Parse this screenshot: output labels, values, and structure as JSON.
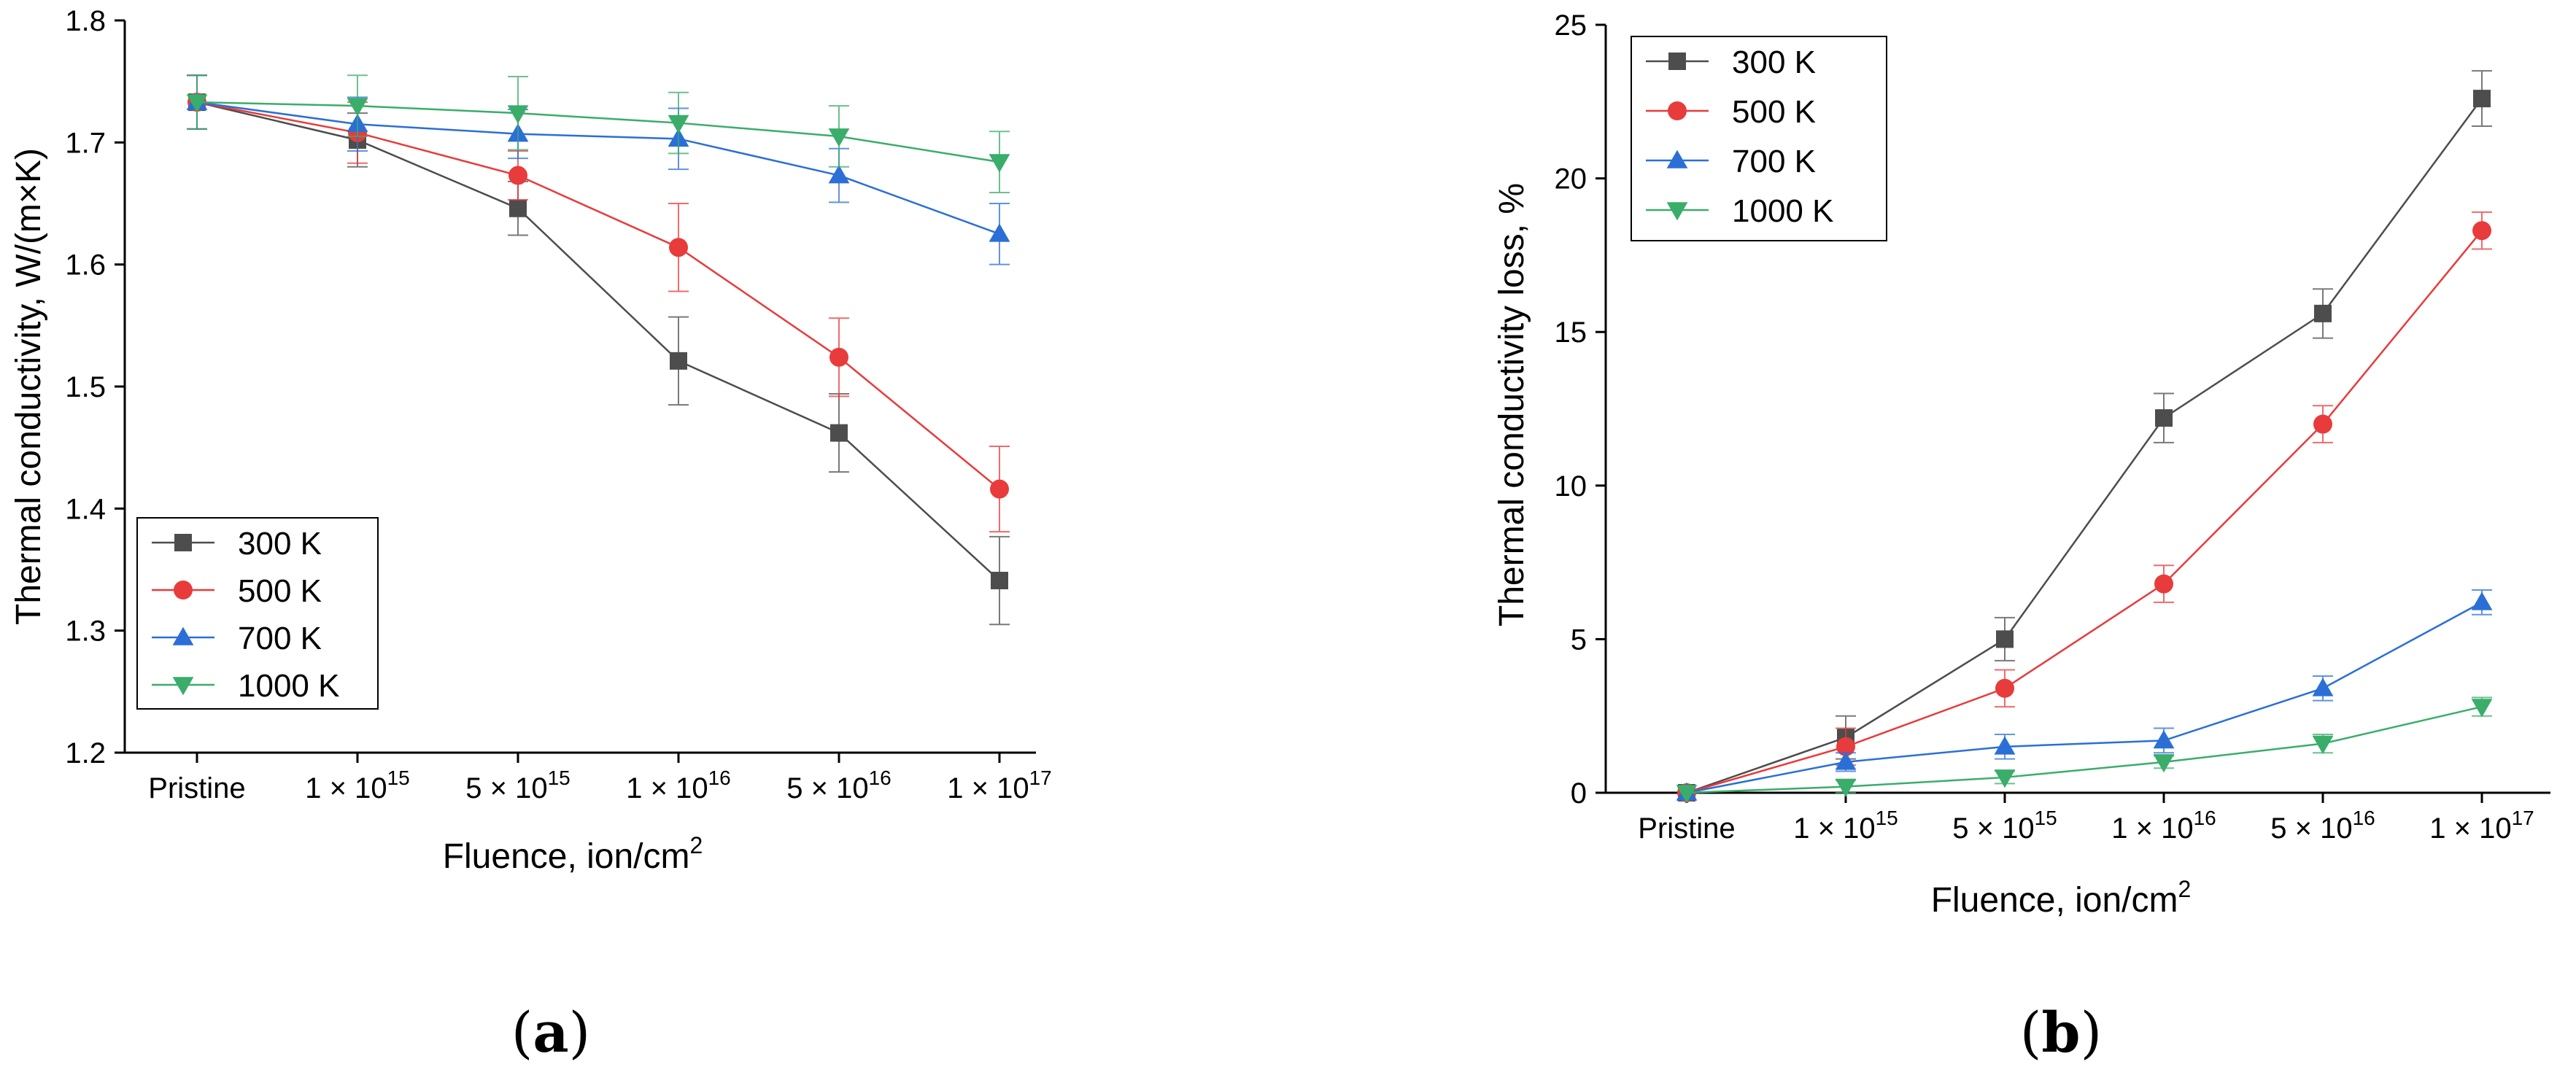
{
  "colors": {
    "300K": "#4d4d4d",
    "500K": "#e83b3b",
    "700K": "#2b6fd6",
    "1000K": "#3aad6a",
    "axis": "#000000"
  },
  "charts": {
    "a": {
      "caption_letter": "a",
      "ylabel": "Thermal conductivity, W/(m×K)",
      "xlabel_base": "Fluence, ion/cm",
      "xlabel_exp": "2",
      "yticks": [
        "1.2",
        "1.3",
        "1.4",
        "1.5",
        "1.6",
        "1.7",
        "1.8"
      ],
      "legend_position": "bottom-left"
    },
    "b": {
      "caption_letter": "b",
      "ylabel": "Thermal conductivity loss, %",
      "xlabel_base": "Fluence, ion/cm",
      "xlabel_exp": "2",
      "yticks": [
        "0",
        "5",
        "10",
        "15",
        "20",
        "25"
      ],
      "legend_position": "top-left"
    }
  },
  "xtick_labels": [
    {
      "base": "Pristine",
      "exp": ""
    },
    {
      "base": "1 × 10",
      "exp": "15"
    },
    {
      "base": "5 × 10",
      "exp": "15"
    },
    {
      "base": "1 × 10",
      "exp": "16"
    },
    {
      "base": "5 × 10",
      "exp": "16"
    },
    {
      "base": "1 × 10",
      "exp": "17"
    }
  ],
  "legend_labels": [
    "300 K",
    "500 K",
    "700 K",
    "1000 K"
  ],
  "chart_data": [
    {
      "type": "line",
      "panel": "a",
      "categories": [
        "Pristine",
        "1 × 10^15",
        "5 × 10^15",
        "1 × 10^16",
        "5 × 10^16",
        "1 × 10^17"
      ],
      "xlabel": "Fluence, ion/cm^2",
      "ylabel": "Thermal conductivity, W/(m×K)",
      "ylim": [
        1.2,
        1.8
      ],
      "grid": false,
      "legend": "bottom-left",
      "series": [
        {
          "name": "300 K",
          "marker": "square",
          "values": [
            1.733,
            1.702,
            1.646,
            1.521,
            1.462,
            1.341
          ],
          "errors": [
            0.022,
            0.022,
            0.022,
            0.036,
            0.032,
            0.036
          ]
        },
        {
          "name": "500 K",
          "marker": "circle",
          "values": [
            1.733,
            1.708,
            1.673,
            1.614,
            1.524,
            1.416
          ],
          "errors": [
            0.022,
            0.025,
            0.02,
            0.036,
            0.032,
            0.035
          ]
        },
        {
          "name": "700 K",
          "marker": "triangle-up",
          "values": [
            1.733,
            1.715,
            1.707,
            1.703,
            1.673,
            1.625
          ],
          "errors": [
            0.022,
            0.022,
            0.02,
            0.025,
            0.022,
            0.025
          ]
        },
        {
          "name": "1000 K",
          "marker": "triangle-down",
          "values": [
            1.733,
            1.73,
            1.724,
            1.716,
            1.705,
            1.684
          ],
          "errors": [
            0.022,
            0.025,
            0.03,
            0.025,
            0.025,
            0.025
          ]
        }
      ]
    },
    {
      "type": "line",
      "panel": "b",
      "categories": [
        "Pristine",
        "1 × 10^15",
        "5 × 10^15",
        "1 × 10^16",
        "5 × 10^16",
        "1 × 10^17"
      ],
      "xlabel": "Fluence, ion/cm^2",
      "ylabel": "Thermal conductivity loss, %",
      "ylim": [
        0,
        25
      ],
      "grid": false,
      "legend": "top-left",
      "series": [
        {
          "name": "300 K",
          "marker": "square",
          "values": [
            0,
            1.8,
            5.0,
            12.2,
            15.6,
            22.6
          ],
          "errors": [
            0,
            0.7,
            0.7,
            0.8,
            0.8,
            0.9
          ]
        },
        {
          "name": "500 K",
          "marker": "circle",
          "values": [
            0,
            1.5,
            3.4,
            6.8,
            12.0,
            18.3
          ],
          "errors": [
            0,
            0.6,
            0.6,
            0.6,
            0.6,
            0.6
          ]
        },
        {
          "name": "700 K",
          "marker": "triangle-up",
          "values": [
            0,
            1.0,
            1.5,
            1.7,
            3.4,
            6.2
          ],
          "errors": [
            0,
            0.3,
            0.4,
            0.4,
            0.4,
            0.4
          ]
        },
        {
          "name": "1000 K",
          "marker": "triangle-down",
          "values": [
            0,
            0.2,
            0.5,
            1.0,
            1.6,
            2.8
          ],
          "errors": [
            0,
            0.2,
            0.2,
            0.2,
            0.3,
            0.3
          ]
        }
      ]
    }
  ]
}
